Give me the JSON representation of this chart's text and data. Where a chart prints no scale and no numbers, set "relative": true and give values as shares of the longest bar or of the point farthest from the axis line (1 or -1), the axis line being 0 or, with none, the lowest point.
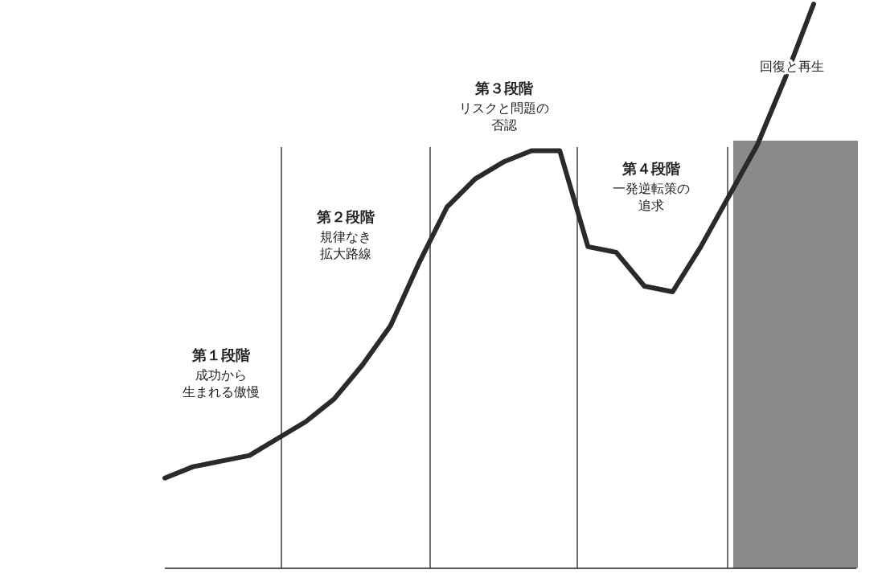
{
  "chart_data": {
    "type": "line",
    "relative": true,
    "categories": [
      null,
      null,
      null,
      null,
      null,
      null,
      null,
      null,
      null,
      null,
      null,
      null,
      null,
      null,
      null,
      null,
      null,
      null,
      null,
      null,
      null,
      null,
      null,
      null
    ],
    "series": [
      {
        "color": "#2a2a2a",
        "values": [
          0.16,
          0.18,
          0.19,
          0.2,
          0.23,
          0.26,
          0.3,
          0.36,
          0.43,
          0.54,
          0.64,
          0.69,
          0.72,
          0.74,
          0.74,
          0.57,
          0.56,
          0.5,
          0.49,
          0.57,
          0.66,
          0.75,
          0.87,
          1
        ]
      }
    ],
    "annotations": [
      "第１段階",
      "成功から生まれる傲慢",
      "第２段階",
      "規律なき拡大路線",
      "第３段階",
      "リスクと問題の否認",
      "第４段階",
      "一発逆転策の追求",
      "回復と再生"
    ]
  }
}
